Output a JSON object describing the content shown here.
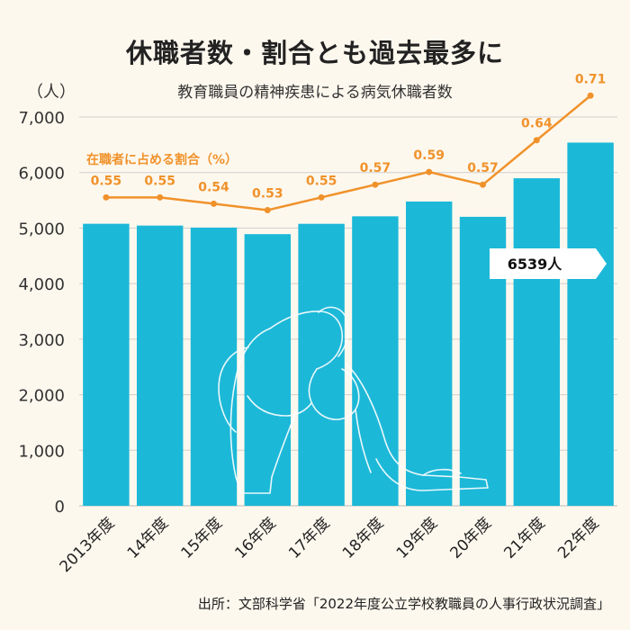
{
  "title": "休職者数・割合とも過去最多に",
  "subtitle": "教育職員の精神疾患による病気休職者数",
  "unit_label": "（人）",
  "source": "出所：文部科学省「2022年度公立学校教職員の人事行政状況調査」",
  "chart_data": {
    "type": "bar",
    "categories": [
      "2013年度",
      "14年度",
      "15年度",
      "16年度",
      "17年度",
      "18年度",
      "19年度",
      "20年度",
      "21年度",
      "22年度"
    ],
    "series": [
      {
        "values": [
          5078,
          5045,
          5009,
          4891,
          5077,
          5212,
          5478,
          5203,
          5897,
          6539
        ]
      }
    ],
    "line_series": {
      "name": "在職者に占める割合（%）",
      "values": [
        0.55,
        0.55,
        0.54,
        0.53,
        0.55,
        0.57,
        0.59,
        0.57,
        0.64,
        0.71
      ],
      "labels": [
        "0.55",
        "0.55",
        "0.54",
        "0.53",
        "0.55",
        "0.57",
        "0.59",
        "0.57",
        "0.64",
        "0.71"
      ]
    },
    "y_ticks": [
      "0",
      "1,000",
      "2,000",
      "3,000",
      "4,000",
      "5,000",
      "6,000",
      "7,000"
    ],
    "ylim": [
      0,
      7000
    ],
    "callout": {
      "text": "6539人",
      "category_index": 9
    },
    "grid": true,
    "colors": {
      "bar": "#1cb8d8",
      "line": "#f0922b",
      "text_line": "#f0922b",
      "background": "#fdf8ee"
    }
  }
}
